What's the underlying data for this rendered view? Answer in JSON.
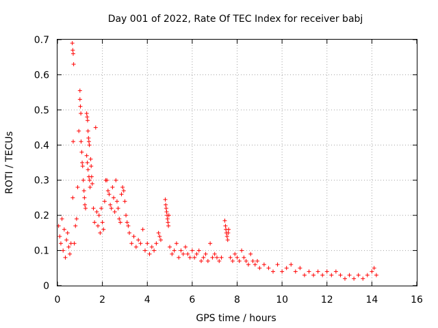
{
  "chart_data": {
    "type": "scatter",
    "title": "Day 001 of 2022, Rate Of TEC Index for receiver babj",
    "xlabel": "GPS time / hours",
    "ylabel": "ROTI / TECUs",
    "xlim": [
      0,
      16
    ],
    "ylim": [
      0,
      0.7
    ],
    "x_ticks": [
      0,
      2,
      4,
      6,
      8,
      10,
      12,
      14,
      16
    ],
    "y_ticks": [
      0,
      0.1,
      0.2,
      0.3,
      0.4,
      0.5,
      0.6,
      0.7
    ],
    "x_tick_labels": [
      "0",
      "2",
      "4",
      "6",
      "8",
      "10",
      "12",
      "14",
      "16"
    ],
    "y_tick_labels": [
      "0",
      "0.1",
      "0.2",
      "0.3",
      "0.4",
      "0.5",
      "0.6",
      "0.7"
    ],
    "grid": true,
    "marker": "+",
    "color": "#ff0000",
    "series": [
      {
        "name": "ROTI",
        "points": [
          [
            0.05,
            0.17
          ],
          [
            0.1,
            0.14
          ],
          [
            0.15,
            0.12
          ],
          [
            0.2,
            0.19
          ],
          [
            0.25,
            0.1
          ],
          [
            0.3,
            0.16
          ],
          [
            0.35,
            0.08
          ],
          [
            0.4,
            0.13
          ],
          [
            0.45,
            0.15
          ],
          [
            0.5,
            0.11
          ],
          [
            0.55,
            0.09
          ],
          [
            0.6,
            0.12
          ],
          [
            0.66,
            0.69
          ],
          [
            0.68,
            0.67
          ],
          [
            0.7,
            0.66
          ],
          [
            0.72,
            0.63
          ],
          [
            0.7,
            0.41
          ],
          [
            0.68,
            0.25
          ],
          [
            0.75,
            0.12
          ],
          [
            0.8,
            0.17
          ],
          [
            0.85,
            0.19
          ],
          [
            0.9,
            0.28
          ],
          [
            0.95,
            0.44
          ],
          [
            1.0,
            0.555
          ],
          [
            1.0,
            0.53
          ],
          [
            1.02,
            0.51
          ],
          [
            1.04,
            0.49
          ],
          [
            1.05,
            0.41
          ],
          [
            1.08,
            0.38
          ],
          [
            1.1,
            0.35
          ],
          [
            1.12,
            0.34
          ],
          [
            1.15,
            0.3
          ],
          [
            1.18,
            0.27
          ],
          [
            1.2,
            0.25
          ],
          [
            1.22,
            0.23
          ],
          [
            1.25,
            0.22
          ],
          [
            1.3,
            0.49
          ],
          [
            1.32,
            0.48
          ],
          [
            1.34,
            0.47
          ],
          [
            1.36,
            0.44
          ],
          [
            1.38,
            0.42
          ],
          [
            1.4,
            0.41
          ],
          [
            1.42,
            0.4
          ],
          [
            1.3,
            0.37
          ],
          [
            1.33,
            0.35
          ],
          [
            1.36,
            0.33
          ],
          [
            1.4,
            0.31
          ],
          [
            1.43,
            0.3
          ],
          [
            1.45,
            0.28
          ],
          [
            1.48,
            0.36
          ],
          [
            1.5,
            0.34
          ],
          [
            1.52,
            0.31
          ],
          [
            1.55,
            0.29
          ],
          [
            1.6,
            0.22
          ],
          [
            1.65,
            0.18
          ],
          [
            1.7,
            0.45
          ],
          [
            1.75,
            0.21
          ],
          [
            1.8,
            0.17
          ],
          [
            1.85,
            0.2
          ],
          [
            1.9,
            0.15
          ],
          [
            1.95,
            0.22
          ],
          [
            2.0,
            0.18
          ],
          [
            2.05,
            0.16
          ],
          [
            2.1,
            0.24
          ],
          [
            2.15,
            0.3
          ],
          [
            2.2,
            0.3
          ],
          [
            2.25,
            0.27
          ],
          [
            2.3,
            0.26
          ],
          [
            2.35,
            0.23
          ],
          [
            2.4,
            0.22
          ],
          [
            2.45,
            0.28
          ],
          [
            2.5,
            0.25
          ],
          [
            2.55,
            0.21
          ],
          [
            2.6,
            0.3
          ],
          [
            2.65,
            0.24
          ],
          [
            2.7,
            0.22
          ],
          [
            2.75,
            0.19
          ],
          [
            2.8,
            0.18
          ],
          [
            2.85,
            0.26
          ],
          [
            2.9,
            0.28
          ],
          [
            2.95,
            0.27
          ],
          [
            3.0,
            0.24
          ],
          [
            3.05,
            0.2
          ],
          [
            3.1,
            0.18
          ],
          [
            3.15,
            0.17
          ],
          [
            3.2,
            0.15
          ],
          [
            3.3,
            0.12
          ],
          [
            3.4,
            0.14
          ],
          [
            3.5,
            0.11
          ],
          [
            3.6,
            0.13
          ],
          [
            3.7,
            0.12
          ],
          [
            3.8,
            0.16
          ],
          [
            3.9,
            0.1
          ],
          [
            4.0,
            0.12
          ],
          [
            4.1,
            0.09
          ],
          [
            4.2,
            0.11
          ],
          [
            4.3,
            0.1
          ],
          [
            4.4,
            0.12
          ],
          [
            4.5,
            0.15
          ],
          [
            4.55,
            0.14
          ],
          [
            4.6,
            0.13
          ],
          [
            4.8,
            0.245
          ],
          [
            4.82,
            0.23
          ],
          [
            4.84,
            0.22
          ],
          [
            4.86,
            0.21
          ],
          [
            4.88,
            0.2
          ],
          [
            4.9,
            0.19
          ],
          [
            4.92,
            0.18
          ],
          [
            4.94,
            0.17
          ],
          [
            4.96,
            0.2
          ],
          [
            5.0,
            0.11
          ],
          [
            5.1,
            0.09
          ],
          [
            5.2,
            0.1
          ],
          [
            5.3,
            0.12
          ],
          [
            5.4,
            0.08
          ],
          [
            5.5,
            0.1
          ],
          [
            5.6,
            0.09
          ],
          [
            5.7,
            0.11
          ],
          [
            5.8,
            0.09
          ],
          [
            5.9,
            0.08
          ],
          [
            6.0,
            0.1
          ],
          [
            6.1,
            0.08
          ],
          [
            6.2,
            0.09
          ],
          [
            6.3,
            0.1
          ],
          [
            6.4,
            0.07
          ],
          [
            6.5,
            0.08
          ],
          [
            6.6,
            0.09
          ],
          [
            6.7,
            0.07
          ],
          [
            6.8,
            0.12
          ],
          [
            6.9,
            0.08
          ],
          [
            7.0,
            0.09
          ],
          [
            7.1,
            0.08
          ],
          [
            7.2,
            0.07
          ],
          [
            7.3,
            0.08
          ],
          [
            7.45,
            0.185
          ],
          [
            7.48,
            0.17
          ],
          [
            7.5,
            0.16
          ],
          [
            7.52,
            0.15
          ],
          [
            7.55,
            0.14
          ],
          [
            7.58,
            0.13
          ],
          [
            7.6,
            0.15
          ],
          [
            7.62,
            0.16
          ],
          [
            7.7,
            0.08
          ],
          [
            7.8,
            0.07
          ],
          [
            7.9,
            0.09
          ],
          [
            8.0,
            0.08
          ],
          [
            8.1,
            0.07
          ],
          [
            8.2,
            0.1
          ],
          [
            8.3,
            0.08
          ],
          [
            8.4,
            0.07
          ],
          [
            8.5,
            0.06
          ],
          [
            8.6,
            0.09
          ],
          [
            8.7,
            0.07
          ],
          [
            8.8,
            0.06
          ],
          [
            8.9,
            0.07
          ],
          [
            9.0,
            0.05
          ],
          [
            9.2,
            0.06
          ],
          [
            9.4,
            0.05
          ],
          [
            9.6,
            0.04
          ],
          [
            9.8,
            0.06
          ],
          [
            10.0,
            0.04
          ],
          [
            10.2,
            0.05
          ],
          [
            10.4,
            0.06
          ],
          [
            10.6,
            0.04
          ],
          [
            10.8,
            0.05
          ],
          [
            11.0,
            0.03
          ],
          [
            11.2,
            0.04
          ],
          [
            11.4,
            0.03
          ],
          [
            11.6,
            0.04
          ],
          [
            11.8,
            0.03
          ],
          [
            12.0,
            0.04
          ],
          [
            12.2,
            0.03
          ],
          [
            12.4,
            0.04
          ],
          [
            12.6,
            0.03
          ],
          [
            12.8,
            0.02
          ],
          [
            13.0,
            0.03
          ],
          [
            13.2,
            0.02
          ],
          [
            13.4,
            0.03
          ],
          [
            13.6,
            0.02
          ],
          [
            13.8,
            0.03
          ],
          [
            14.0,
            0.04
          ],
          [
            14.1,
            0.05
          ],
          [
            14.2,
            0.03
          ]
        ]
      }
    ]
  }
}
